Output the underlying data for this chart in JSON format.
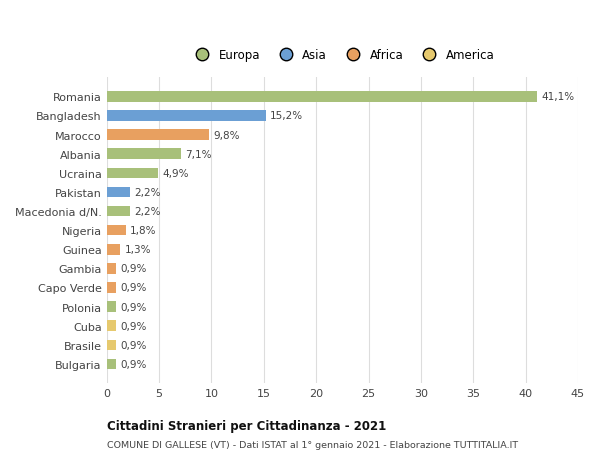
{
  "categories": [
    "Bulgaria",
    "Brasile",
    "Cuba",
    "Polonia",
    "Capo Verde",
    "Gambia",
    "Guinea",
    "Nigeria",
    "Macedonia d/N.",
    "Pakistan",
    "Ucraina",
    "Albania",
    "Marocco",
    "Bangladesh",
    "Romania"
  ],
  "values": [
    0.9,
    0.9,
    0.9,
    0.9,
    0.9,
    0.9,
    1.3,
    1.8,
    2.2,
    2.2,
    4.9,
    7.1,
    9.8,
    15.2,
    41.1
  ],
  "labels": [
    "0,9%",
    "0,9%",
    "0,9%",
    "0,9%",
    "0,9%",
    "0,9%",
    "1,3%",
    "1,8%",
    "2,2%",
    "2,2%",
    "4,9%",
    "7,1%",
    "9,8%",
    "15,2%",
    "41,1%"
  ],
  "colors": [
    "#a8c07a",
    "#e6c96e",
    "#e6c96e",
    "#a8c07a",
    "#e8a060",
    "#e8a060",
    "#e8a060",
    "#e8a060",
    "#a8c07a",
    "#6b9fd4",
    "#a8c07a",
    "#a8c07a",
    "#e8a060",
    "#6b9fd4",
    "#a8c07a"
  ],
  "legend_labels": [
    "Europa",
    "Asia",
    "Africa",
    "America"
  ],
  "legend_colors": [
    "#a8c07a",
    "#6b9fd4",
    "#e8a060",
    "#e6c96e"
  ],
  "xlim": [
    0,
    45
  ],
  "xticks": [
    0,
    5,
    10,
    15,
    20,
    25,
    30,
    35,
    40,
    45
  ],
  "title1": "Cittadini Stranieri per Cittadinanza - 2021",
  "title2": "COMUNE DI GALLESE (VT) - Dati ISTAT al 1° gennaio 2021 - Elaborazione TUTTITALIA.IT",
  "bg_color": "#ffffff",
  "bar_height": 0.55,
  "grid_color": "#dddddd"
}
